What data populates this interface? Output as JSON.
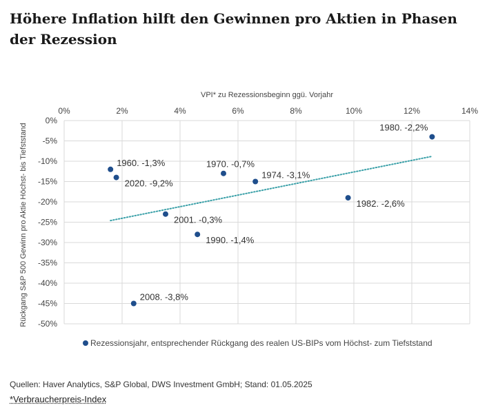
{
  "page": {
    "title": "Höhere Inflation hilft den Gewinnen pro Aktien in Phasen der Rezession",
    "sources": "Quellen: Haver Analytics, S&P Global, DWS Investment GmbH; Stand: 01.05.2025",
    "footnote": "*Verbraucherpreis-Index"
  },
  "chart_data": {
    "type": "scatter",
    "xlabel": "VPI* zu Rezessionsbeginn ggü. Vorjahr",
    "ylabel": "Rückgang S&P 500 Gewinn pro Aktie Höchst- bis Tiefststand",
    "xlim": [
      0,
      14
    ],
    "ylim": [
      -50,
      0
    ],
    "x_ticks": [
      0,
      2,
      4,
      6,
      8,
      10,
      12,
      14
    ],
    "x_tick_labels": [
      "0%",
      "2%",
      "4%",
      "6%",
      "8%",
      "10%",
      "12%",
      "14%"
    ],
    "y_ticks": [
      0,
      -5,
      -10,
      -15,
      -20,
      -25,
      -30,
      -35,
      -40,
      -45,
      -50
    ],
    "y_tick_labels": [
      "0%",
      "-5%",
      "-10%",
      "-15%",
      "-20%",
      "-25%",
      "-30%",
      "-35%",
      "-40%",
      "-45%",
      "-50%"
    ],
    "x_axis_position": "top",
    "grid": true,
    "legend_placement": "bottom",
    "legend": "Rezessionsjahr, entsprechender Rückgang des realen US-BIPs vom Höchst- zum Tiefststand",
    "marker_color": "#1f4e8c",
    "trendline_color": "#3aa0a8",
    "points": [
      {
        "x": 1.6,
        "y": -12,
        "label": "1960. -1,3%",
        "label_pos": "right-up"
      },
      {
        "x": 1.8,
        "y": -14,
        "label": "2020. -9,2%",
        "label_pos": "right-down"
      },
      {
        "x": 2.4,
        "y": -45,
        "label": "2008. -3,8%",
        "label_pos": "right-up"
      },
      {
        "x": 3.5,
        "y": -23,
        "label": "2001. -0,3%",
        "label_pos": "right-down"
      },
      {
        "x": 4.6,
        "y": -28,
        "label": "1990. -1,4%",
        "label_pos": "right-down"
      },
      {
        "x": 5.5,
        "y": -13,
        "label": "1970. -0,7%",
        "label_pos": "above"
      },
      {
        "x": 6.6,
        "y": -15,
        "label": "1974. -3,1%",
        "label_pos": "right-up"
      },
      {
        "x": 9.8,
        "y": -19,
        "label": "1982. -2,6%",
        "label_pos": "right-down"
      },
      {
        "x": 12.7,
        "y": -4,
        "label": "1980. -2,2%",
        "label_pos": "above-left"
      }
    ],
    "trendline": {
      "x": [
        1.6,
        12.7
      ],
      "y": [
        -24.6,
        -8.8
      ]
    }
  }
}
